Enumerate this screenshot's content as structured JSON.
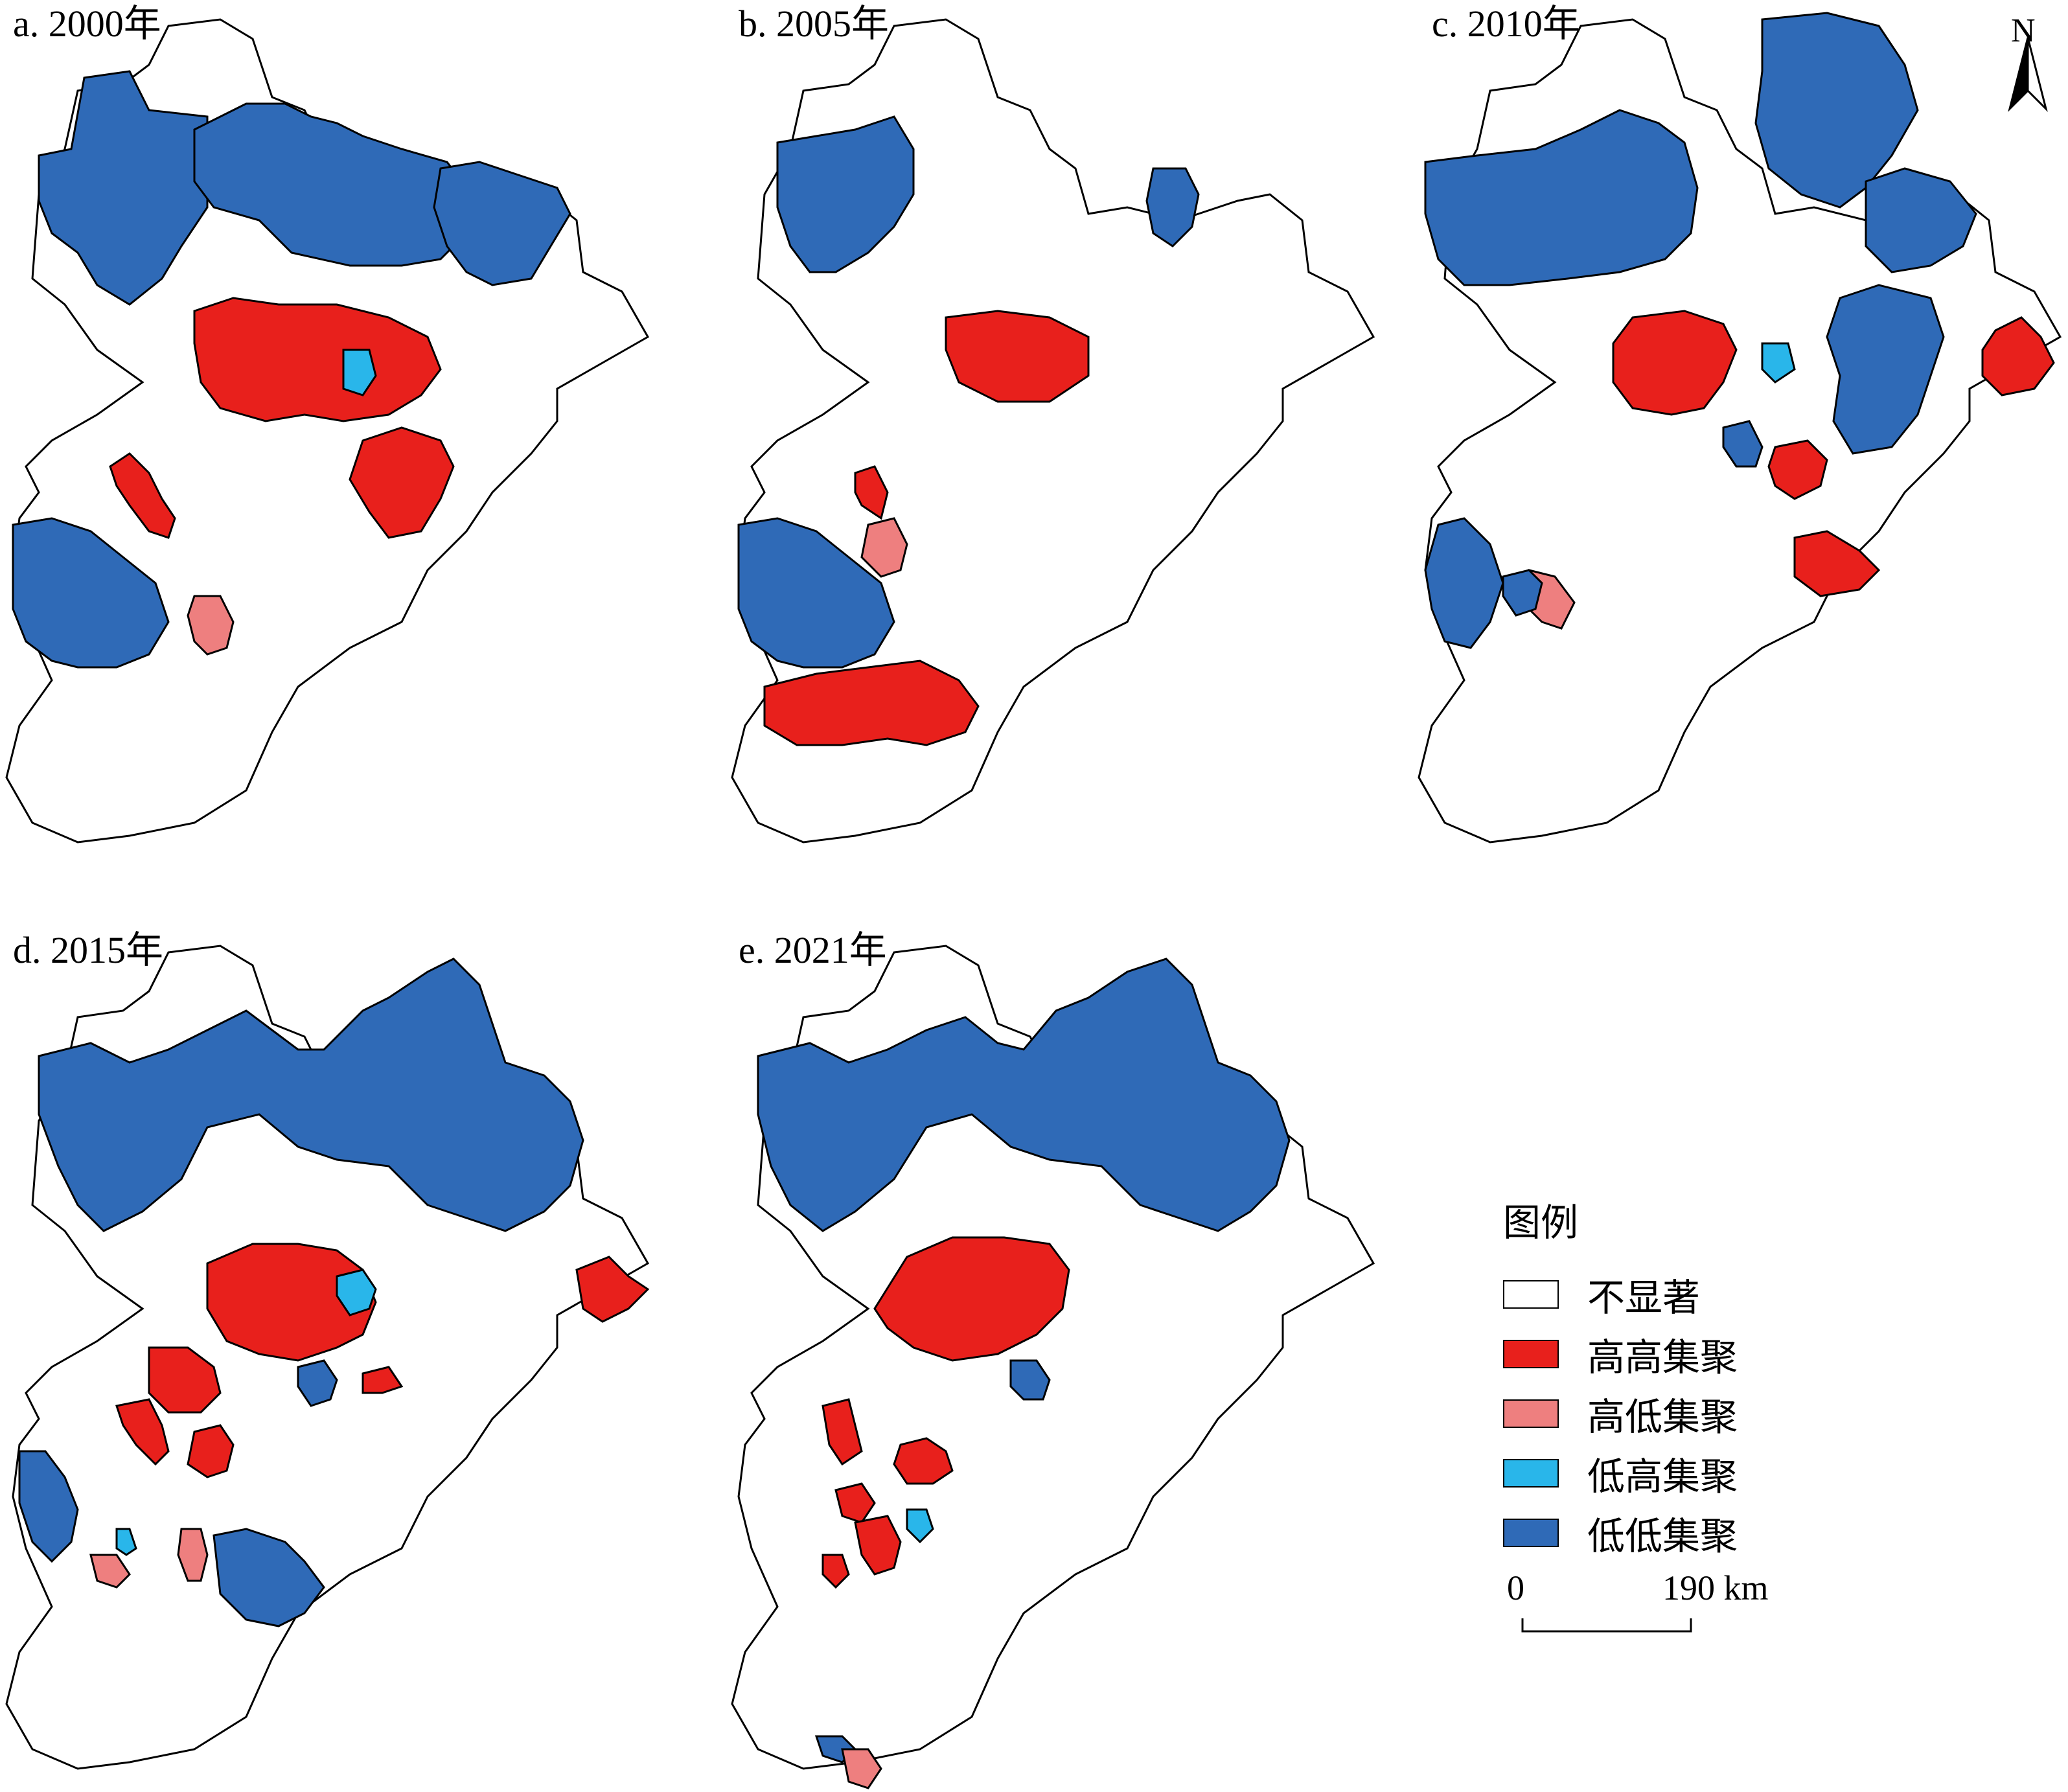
{
  "panels": [
    {
      "id": "a",
      "label": "a. 2000年"
    },
    {
      "id": "b",
      "label": "b. 2005年"
    },
    {
      "id": "c",
      "label": "c. 2010年"
    },
    {
      "id": "d",
      "label": "d. 2015年"
    },
    {
      "id": "e",
      "label": "e. 2021年"
    }
  ],
  "legend": {
    "title": "图例",
    "items": [
      {
        "label": "不显著",
        "color": "#ffffff"
      },
      {
        "label": "高高集聚",
        "color": "#e8201c"
      },
      {
        "label": "高低集聚",
        "color": "#ee7f7f"
      },
      {
        "label": "低高集聚",
        "color": "#29b6ea"
      },
      {
        "label": "低低集聚",
        "color": "#2f6ab7"
      }
    ]
  },
  "scale_bar": {
    "start": "0",
    "end": "190 km"
  },
  "north_arrow": {
    "letter": "N"
  },
  "colors": {
    "not_significant": "#ffffff",
    "high_high": "#e8201c",
    "high_low": "#ee7f7f",
    "low_high": "#29b6ea",
    "low_low": "#2f6ab7",
    "outline": "#000000"
  }
}
